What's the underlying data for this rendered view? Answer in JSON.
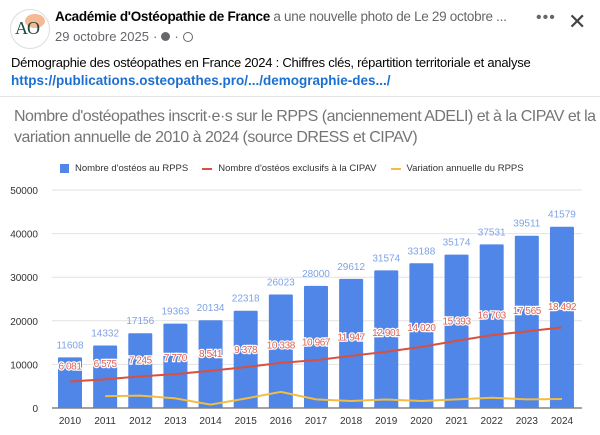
{
  "post": {
    "author": "Académie d'Ostéopathie de France",
    "action": "a une nouvelle photo de Le 29 octobre ...",
    "date": "29 octobre 2025",
    "separator": "·",
    "more_label": "•••",
    "close_label": "✕",
    "text": "Démographie des ostéopathes en France 2024 : Chiffres clés, répartition territoriale et analyse",
    "link": "https://publications.osteopathes.pro/.../demographie-des.../",
    "avatar_text": "AO"
  },
  "chart_data": {
    "type": "bar",
    "title": "Nombre d'ostéopathes inscrit·e·s sur le RPPS (anciennement ADELI) et à la CIPAV et la variation annuelle de 2010 à 2024 (source DRESS et CIPAV)",
    "categories": [
      "2010",
      "2011",
      "2012",
      "2013",
      "2014",
      "2015",
      "2016",
      "2017",
      "2018",
      "2019",
      "2020",
      "2021",
      "2022",
      "2023",
      "2024"
    ],
    "ylim": [
      0,
      50000
    ],
    "yticks": [
      0,
      10000,
      20000,
      30000,
      40000,
      50000
    ],
    "grid": true,
    "legend_position": "top",
    "series": [
      {
        "name": "Nombre d'ostéos au RPPS",
        "type": "bar",
        "color": "#4f86e8",
        "label_color": "#7fa3e6",
        "values": [
          11608,
          14332,
          17156,
          19363,
          20134,
          22318,
          26023,
          28000,
          29612,
          31574,
          33188,
          35174,
          37531,
          39511,
          41579
        ],
        "labels": [
          "11608",
          "14332",
          "17156",
          "19363",
          "20134",
          "22318",
          "26023",
          "28000",
          "29612",
          "31574",
          "33188",
          "35174",
          "37531",
          "39511",
          "41579"
        ]
      },
      {
        "name": "Nombre d'ostéos exclusifs à la CIPAV",
        "type": "line",
        "color": "#d9503f",
        "label_color": "#e0604f",
        "values": [
          6081,
          6575,
          7245,
          7770,
          8541,
          9378,
          10338,
          10967,
          11947,
          12901,
          14020,
          15393,
          16703,
          17565,
          18492
        ],
        "labels": [
          "6 081",
          "6 575",
          "7 245",
          "7 770",
          "8 541",
          "9 378",
          "10 338",
          "10 967",
          "11 947",
          "12 901",
          "14 020",
          "15 393",
          "16 703",
          "17 565",
          "18 492"
        ]
      },
      {
        "name": "Variation annuelle du RPPS",
        "type": "line",
        "color": "#f2bd42",
        "values": [
          null,
          2724,
          2824,
          2207,
          771,
          2184,
          3705,
          1977,
          1612,
          1962,
          1614,
          1986,
          2357,
          1980,
          2068
        ]
      }
    ]
  }
}
